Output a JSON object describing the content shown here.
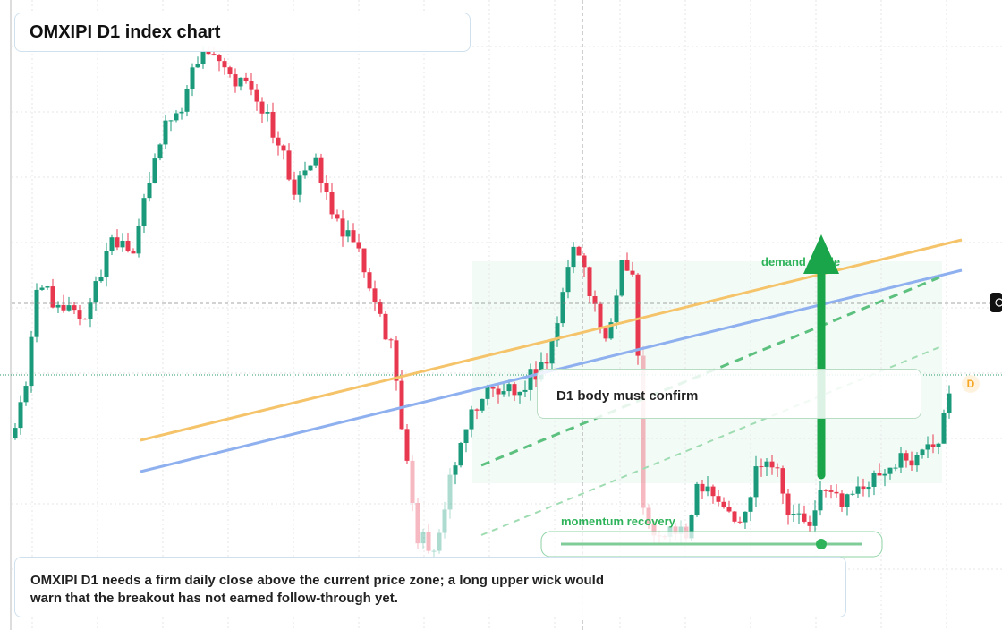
{
  "title": "OMXIPI D1 index chart",
  "annotations": {
    "demand_guide": "demand guide",
    "confirm": "D1 body must confirm",
    "momentum": "momentum recovery"
  },
  "marker": "D",
  "note": "OMXIPI D1 needs a firm daily close above the current price zone; a long upper wick would warn that the breakout has not earned follow-through yet."
}
